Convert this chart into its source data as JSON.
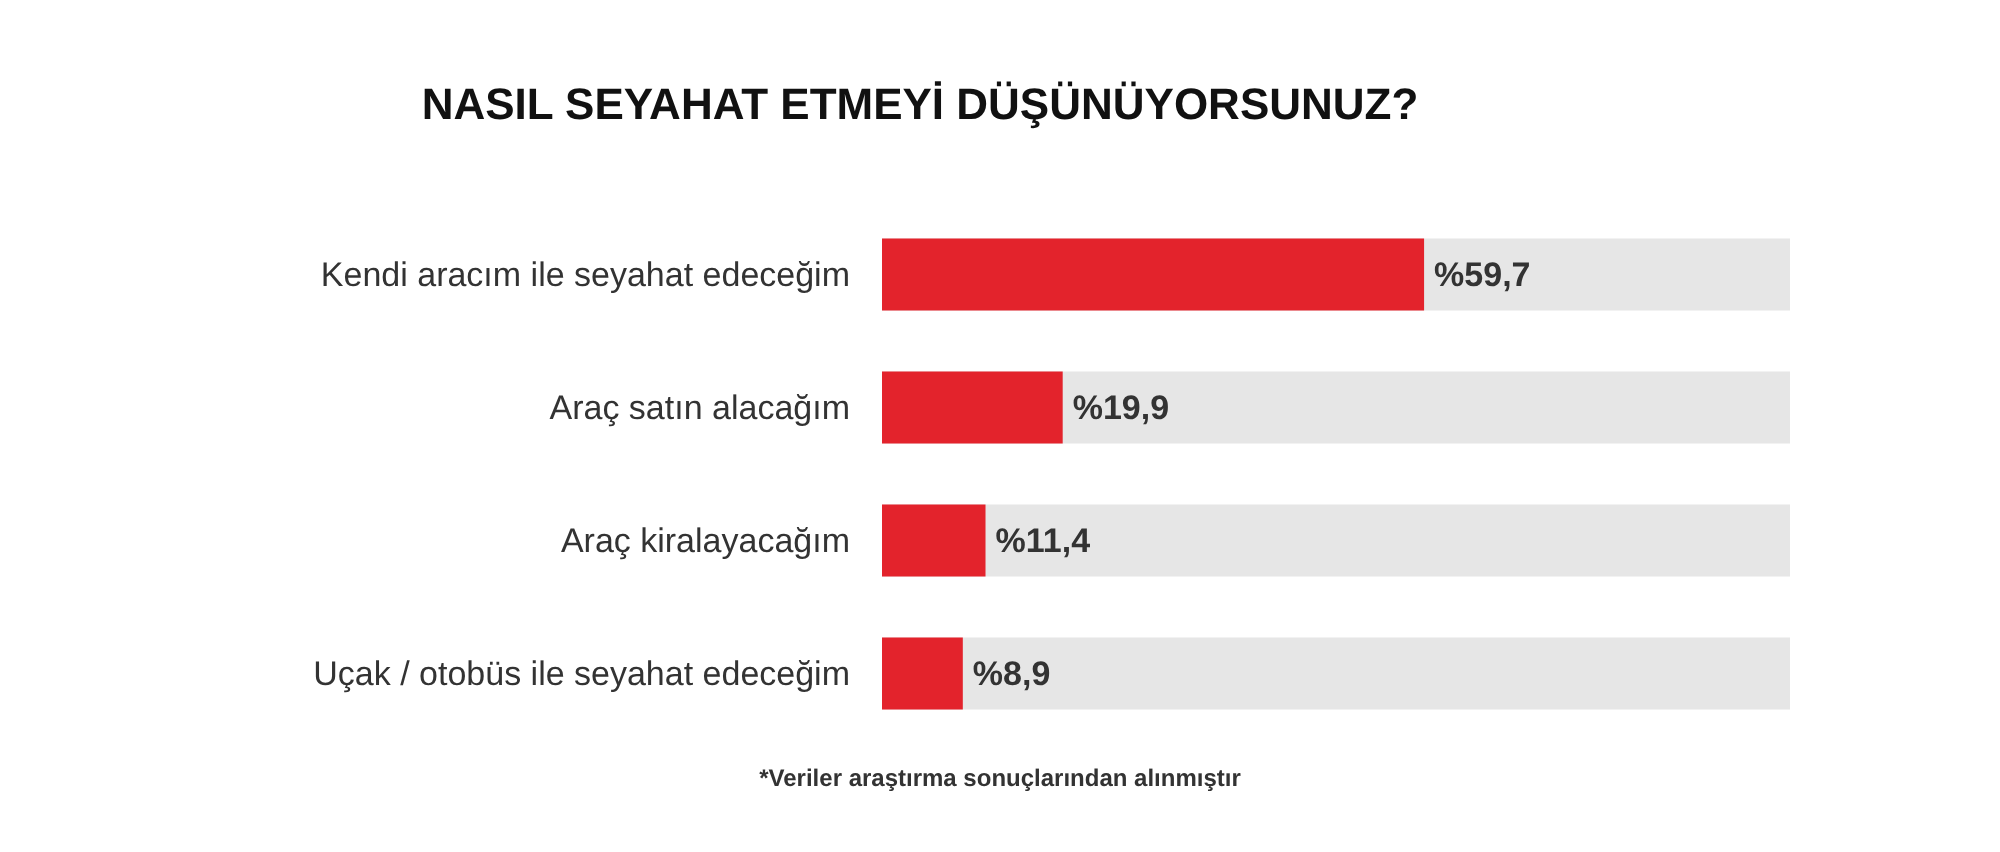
{
  "chart_data": {
    "type": "bar",
    "orientation": "horizontal",
    "title": "NASIL SEYAHAT ETMEYİ DÜŞÜNÜYORSUNUZ?",
    "categories": [
      "Kendi aracım ile seyahat edeceğim",
      "Araç satın alacağım",
      "Araç kiralayacağım",
      "Uçak / otobüs ile seyahat edeceğim"
    ],
    "values": [
      59.7,
      19.9,
      11.4,
      8.9
    ],
    "value_labels": [
      "%59,7",
      "%19,9",
      "%11,4",
      "%8,9"
    ],
    "color": "#e3232c",
    "xlim": [
      0,
      100
    ],
    "tick_labels": "y",
    "grid": false,
    "annotations": [
      "*Veriler araştırma sonuçlarından alınmıştır"
    ]
  }
}
